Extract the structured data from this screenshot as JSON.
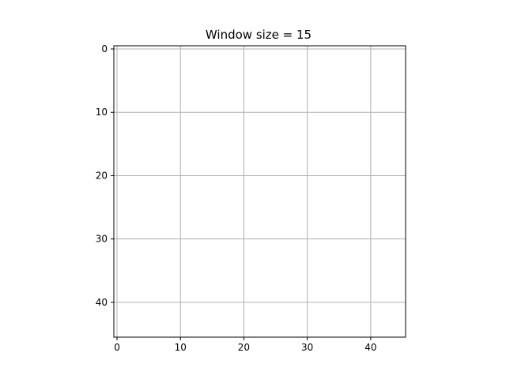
{
  "chart_data": {
    "type": "heatmap",
    "title": "Window size = 15",
    "xlabel": "",
    "ylabel": "",
    "xlim": [
      -0.5,
      45.5
    ],
    "ylim": [
      45.5,
      -0.5
    ],
    "y_inverted": true,
    "x_ticks": [
      0,
      10,
      20,
      30,
      40
    ],
    "y_ticks": [
      0,
      10,
      20,
      30,
      40
    ],
    "x_tick_labels": [
      "0",
      "10",
      "20",
      "30",
      "40"
    ],
    "y_tick_labels": [
      "0",
      "10",
      "20",
      "30",
      "40"
    ],
    "grid": true,
    "values": [],
    "colors": {
      "background": "#ffffff",
      "grid": "#b0b0b0",
      "axes": "#000000"
    }
  }
}
